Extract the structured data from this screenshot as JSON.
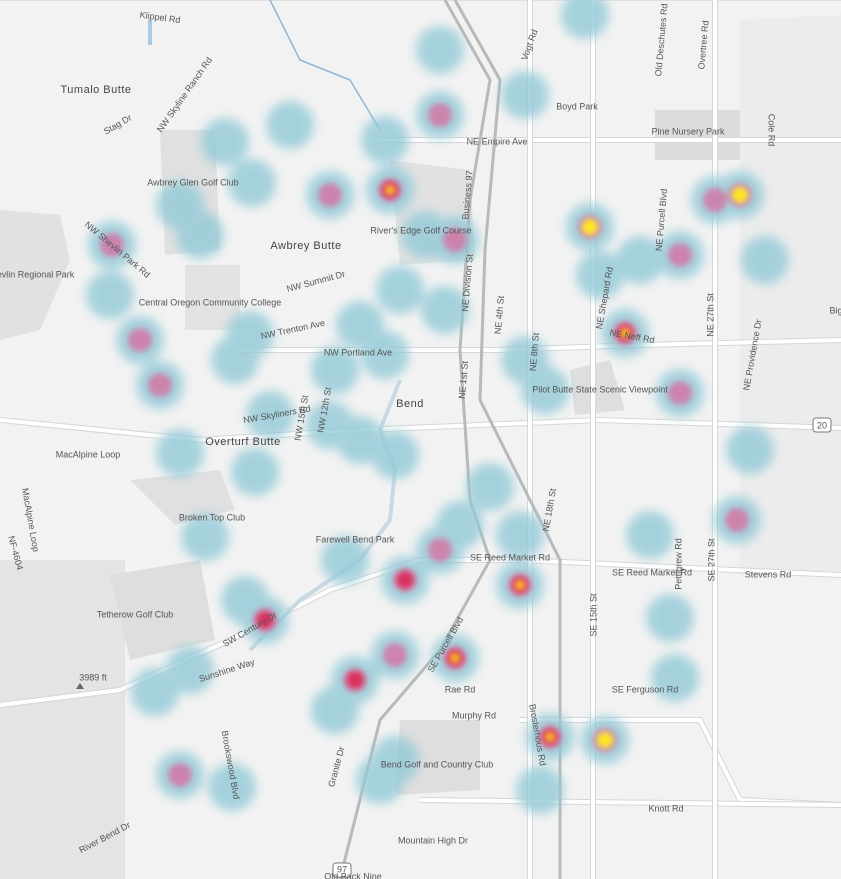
{
  "map": {
    "labels": [
      "Klippel Rd",
      "Tumalo Butte",
      "NW Skyline Ranch Rd",
      "Stag Dr",
      "Vogt Rd",
      "Boyd Park",
      "Old Deschutes Rd",
      "Overtree Rd",
      "NE Empire Ave",
      "Pine Nursery Park",
      "Cole Rd",
      "Awbrey Glen Golf Club",
      "NW Shevlin Park Rd",
      "Shevlin Regional Park",
      "Awbrey Butte",
      "River's Edge Golf Course",
      "NW Summit Dr",
      "Central Oregon Community College",
      "NW Trenton Ave",
      "NW Portland Ave",
      "NE Division St",
      "NE 4th St",
      "NE 8th St",
      "NE Shepard Rd",
      "NE Purcell Blvd",
      "NE 27th St",
      "NE Neff Rd",
      "NE Providence Dr",
      "Pilot Butte State Scenic Viewpoint",
      "Bend",
      "NW Skyliners Rd",
      "Overturf Butte",
      "NW 15th St",
      "NW 12th St",
      "MacAlpine Loop",
      "MacAlpine Loop",
      "Broken Top Club",
      "Farewell Bend Park",
      "SE Reed Market Rd",
      "SE Reed Market Rd",
      "Stevens Rd",
      "SE 15th St",
      "Pettigrew Rd",
      "SE 27th St",
      "Tetherow Golf Club",
      "SW Century Dr",
      "Sunshine Way",
      "3989 ft",
      "SE Ferguson Rd",
      "Rae Rd",
      "Murphy Rd",
      "Brookswood Blvd",
      "Granite Dr",
      "Bend Golf and Country Club",
      "Knott Rd",
      "Mountain High Dr",
      "River Bend Dr",
      "Old Back Nine",
      "NF-4604",
      "SE Purcell Blvd",
      "Brosterhous Rd",
      "Business 97",
      "NE 1st St",
      "NE 18th St",
      "20",
      "97",
      "Big"
    ]
  }
}
